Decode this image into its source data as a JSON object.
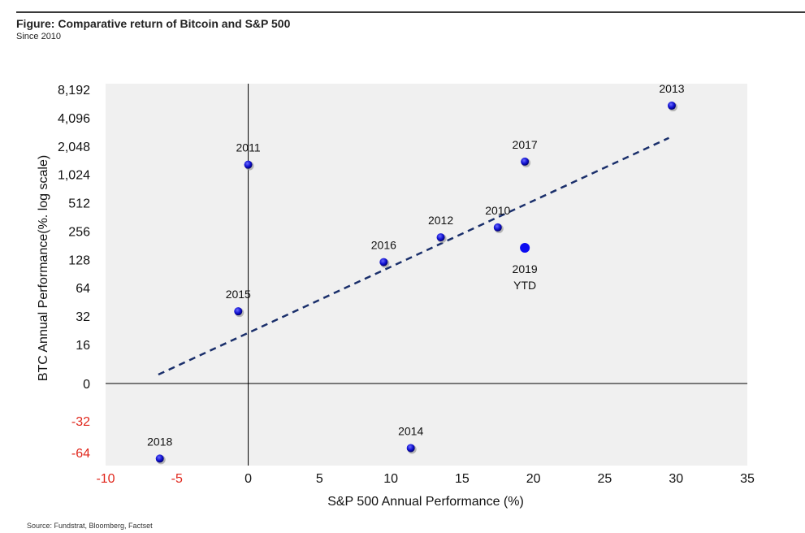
{
  "header": {
    "title": "Figure: Comparative return of Bitcoin and S&P 500",
    "subtitle": "Since 2010"
  },
  "footer": {
    "source": "Source: Fundstrat, Bloomberg, Factset"
  },
  "chart_data": {
    "type": "scatter",
    "xlabel": "S&P 500 Annual Performance (%)",
    "ylabel": "BTC Annual Performance(%. log scale)",
    "xlim": [
      -10,
      35
    ],
    "x_ticks": [
      -10,
      -5,
      0,
      5,
      10,
      15,
      20,
      25,
      30,
      35
    ],
    "x_tick_labels": [
      "-10",
      "-5",
      "0",
      "5",
      "10",
      "15",
      "20",
      "25",
      "30",
      "35"
    ],
    "y_scale": "log (symmetric, negative values below zero)",
    "y_ticks": [
      8192,
      4096,
      2048,
      1024,
      512,
      256,
      128,
      64,
      32,
      16,
      0,
      -32,
      -64
    ],
    "y_tick_labels": [
      "8,192",
      "4,096",
      "2,048",
      "1,024",
      "512",
      "256",
      "128",
      "64",
      "32",
      "16",
      "0",
      "-32",
      "-64"
    ],
    "negative_tick_color": "#e0261b",
    "point_color": "#1010d0",
    "trendline_color": "#1a2f6b",
    "plot_background": "#f0f0f0",
    "grid": false,
    "points": [
      {
        "label": "2010",
        "x": 17.5,
        "y": 280,
        "label_pos": "above"
      },
      {
        "label": "2011",
        "x": 0,
        "y": 1300,
        "label_pos": "above"
      },
      {
        "label": "2012",
        "x": 13.5,
        "y": 220,
        "label_pos": "above"
      },
      {
        "label": "2013",
        "x": 29.7,
        "y": 5500,
        "label_pos": "above"
      },
      {
        "label": "2014",
        "x": 11.4,
        "y": -58,
        "label_pos": "above"
      },
      {
        "label": "2015",
        "x": -0.7,
        "y": 36,
        "label_pos": "above"
      },
      {
        "label": "2016",
        "x": 9.5,
        "y": 120,
        "label_pos": "above"
      },
      {
        "label": "2017",
        "x": 19.4,
        "y": 1400,
        "label_pos": "above"
      },
      {
        "label": "2018",
        "x": -6.2,
        "y": -73,
        "label_pos": "above"
      },
      {
        "label": "2019\nYTD",
        "x": 19.4,
        "y": 170,
        "label_pos": "below",
        "highlight": true
      }
    ],
    "trendline": {
      "x0": -6.3,
      "y0": 5,
      "x1": 29.5,
      "y1": 2500
    }
  }
}
